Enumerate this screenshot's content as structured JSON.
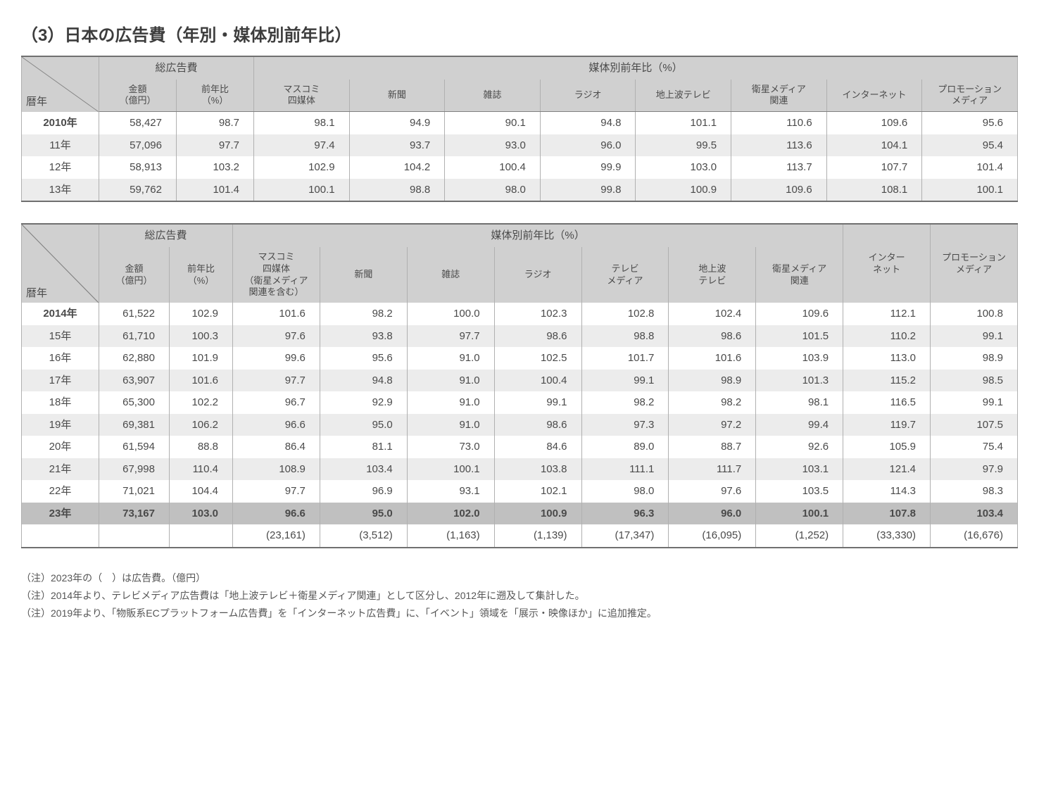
{
  "title": "（3）日本の広告費（年別・媒体別前年比）",
  "colors": {
    "fg": "#4a4a4a",
    "border": "#808080",
    "border_light": "#b0b0b0",
    "header_bg": "#d0d0d0",
    "row_alt": "#ececec",
    "row_highlight": "#c0c0c0",
    "page_bg": "#ffffff"
  },
  "table1": {
    "header_year": "暦年",
    "group_total": "総広告費",
    "group_media": "媒体別前年比（%）",
    "cols": {
      "amount": "金額",
      "amount_unit": "（億円）",
      "yoy": "前年比",
      "yoy_unit": "（%）",
      "mascom": "マスコミ\n四媒体",
      "newspaper": "新聞",
      "magazine": "雑誌",
      "radio": "ラジオ",
      "terrestrial": "地上波テレビ",
      "satellite": "衛星メディア\n関連",
      "internet": "インターネット",
      "promotion": "プロモーション\nメディア"
    },
    "rows": [
      {
        "year": "2010年",
        "amount": "58,427",
        "yoy": "98.7",
        "mascom": "98.1",
        "newspaper": "94.9",
        "magazine": "90.1",
        "radio": "94.8",
        "terrestrial": "101.1",
        "satellite": "110.6",
        "internet": "109.6",
        "promotion": "95.6"
      },
      {
        "year": "11年",
        "amount": "57,096",
        "yoy": "97.7",
        "mascom": "97.4",
        "newspaper": "93.7",
        "magazine": "93.0",
        "radio": "96.0",
        "terrestrial": "99.5",
        "satellite": "113.6",
        "internet": "104.1",
        "promotion": "95.4"
      },
      {
        "year": "12年",
        "amount": "58,913",
        "yoy": "103.2",
        "mascom": "102.9",
        "newspaper": "104.2",
        "magazine": "100.4",
        "radio": "99.9",
        "terrestrial": "103.0",
        "satellite": "113.7",
        "internet": "107.7",
        "promotion": "101.4"
      },
      {
        "year": "13年",
        "amount": "59,762",
        "yoy": "101.4",
        "mascom": "100.1",
        "newspaper": "98.8",
        "magazine": "98.0",
        "radio": "99.8",
        "terrestrial": "100.9",
        "satellite": "109.6",
        "internet": "108.1",
        "promotion": "100.1"
      }
    ]
  },
  "table2": {
    "header_year": "暦年",
    "group_total": "総広告費",
    "group_media": "媒体別前年比（%）",
    "cols": {
      "amount": "金額",
      "amount_unit": "（億円）",
      "yoy": "前年比",
      "yoy_unit": "（%）",
      "mascom": "マスコミ\n四媒体\n（衛星メディア\n関連を含む）",
      "newspaper": "新聞",
      "magazine": "雑誌",
      "radio": "ラジオ",
      "tv_media": "テレビ\nメディア",
      "terrestrial": "地上波\nテレビ",
      "satellite": "衛星メディア\n関連",
      "internet": "インター\nネット",
      "promotion": "プロモーション\nメディア"
    },
    "rows": [
      {
        "year": "2014年",
        "amount": "61,522",
        "yoy": "102.9",
        "mascom": "101.6",
        "newspaper": "98.2",
        "magazine": "100.0",
        "radio": "102.3",
        "tv_media": "102.8",
        "terrestrial": "102.4",
        "satellite": "109.6",
        "internet": "112.1",
        "promotion": "100.8"
      },
      {
        "year": "15年",
        "amount": "61,710",
        "yoy": "100.3",
        "mascom": "97.6",
        "newspaper": "93.8",
        "magazine": "97.7",
        "radio": "98.6",
        "tv_media": "98.8",
        "terrestrial": "98.6",
        "satellite": "101.5",
        "internet": "110.2",
        "promotion": "99.1"
      },
      {
        "year": "16年",
        "amount": "62,880",
        "yoy": "101.9",
        "mascom": "99.6",
        "newspaper": "95.6",
        "magazine": "91.0",
        "radio": "102.5",
        "tv_media": "101.7",
        "terrestrial": "101.6",
        "satellite": "103.9",
        "internet": "113.0",
        "promotion": "98.9"
      },
      {
        "year": "17年",
        "amount": "63,907",
        "yoy": "101.6",
        "mascom": "97.7",
        "newspaper": "94.8",
        "magazine": "91.0",
        "radio": "100.4",
        "tv_media": "99.1",
        "terrestrial": "98.9",
        "satellite": "101.3",
        "internet": "115.2",
        "promotion": "98.5"
      },
      {
        "year": "18年",
        "amount": "65,300",
        "yoy": "102.2",
        "mascom": "96.7",
        "newspaper": "92.9",
        "magazine": "91.0",
        "radio": "99.1",
        "tv_media": "98.2",
        "terrestrial": "98.2",
        "satellite": "98.1",
        "internet": "116.5",
        "promotion": "99.1"
      },
      {
        "year": "19年",
        "amount": "69,381",
        "yoy": "106.2",
        "mascom": "96.6",
        "newspaper": "95.0",
        "magazine": "91.0",
        "radio": "98.6",
        "tv_media": "97.3",
        "terrestrial": "97.2",
        "satellite": "99.4",
        "internet": "119.7",
        "promotion": "107.5"
      },
      {
        "year": "20年",
        "amount": "61,594",
        "yoy": "88.8",
        "mascom": "86.4",
        "newspaper": "81.1",
        "magazine": "73.0",
        "radio": "84.6",
        "tv_media": "89.0",
        "terrestrial": "88.7",
        "satellite": "92.6",
        "internet": "105.9",
        "promotion": "75.4"
      },
      {
        "year": "21年",
        "amount": "67,998",
        "yoy": "110.4",
        "mascom": "108.9",
        "newspaper": "103.4",
        "magazine": "100.1",
        "radio": "103.8",
        "tv_media": "111.1",
        "terrestrial": "111.7",
        "satellite": "103.1",
        "internet": "121.4",
        "promotion": "97.9"
      },
      {
        "year": "22年",
        "amount": "71,021",
        "yoy": "104.4",
        "mascom": "97.7",
        "newspaper": "96.9",
        "magazine": "93.1",
        "radio": "102.1",
        "tv_media": "98.0",
        "terrestrial": "97.6",
        "satellite": "103.5",
        "internet": "114.3",
        "promotion": "98.3"
      },
      {
        "year": "23年",
        "amount": "73,167",
        "yoy": "103.0",
        "mascom": "96.6",
        "newspaper": "95.0",
        "magazine": "102.0",
        "radio": "100.9",
        "tv_media": "96.3",
        "terrestrial": "96.0",
        "satellite": "100.1",
        "internet": "107.8",
        "promotion": "103.4",
        "highlight": true
      }
    ],
    "paren_row": {
      "mascom": "(23,161)",
      "newspaper": "(3,512)",
      "magazine": "(1,163)",
      "radio": "(1,139)",
      "tv_media": "(17,347)",
      "terrestrial": "(16,095)",
      "satellite": "(1,252)",
      "internet": "(33,330)",
      "promotion": "(16,676)"
    }
  },
  "notes": [
    "（注）2023年の（　）は広告費。（億円）",
    "（注）2014年より、テレビメディア広告費は「地上波テレビ＋衛星メディア関連」として区分し、2012年に遡及して集計した。",
    "（注）2019年より、「物販系ECプラットフォーム広告費」を「インターネット広告費」に、「イベント」領域を「展示・映像ほか」に追加推定。"
  ]
}
